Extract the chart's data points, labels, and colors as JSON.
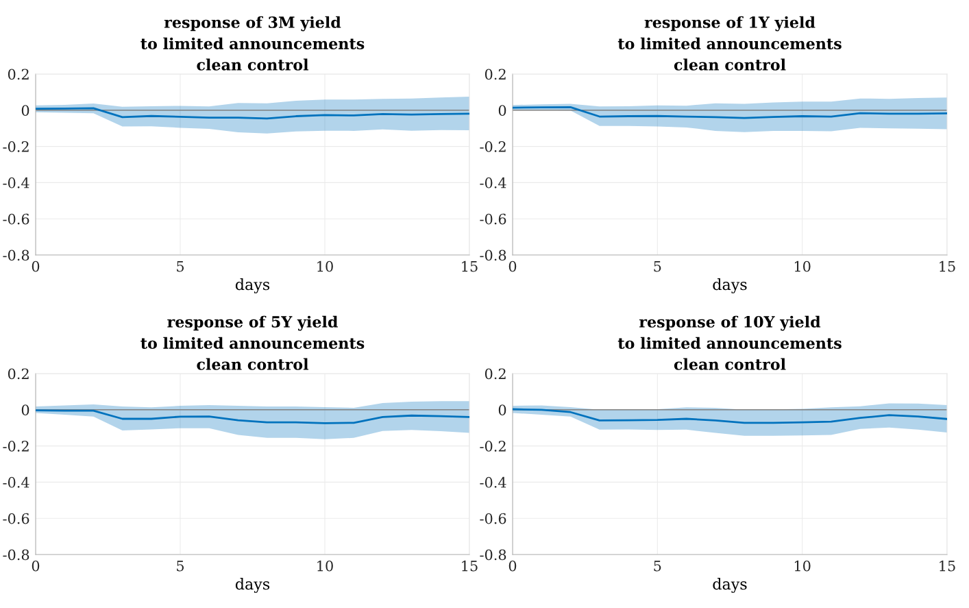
{
  "chart_data": [
    {
      "type": "line",
      "title": "response of 3M yield\nto limited announcements\nclean control",
      "xlabel": "days",
      "x": [
        0,
        1,
        2,
        3,
        4,
        5,
        6,
        7,
        8,
        9,
        10,
        11,
        12,
        13,
        14,
        15
      ],
      "xlim": [
        0,
        15
      ],
      "xticks": [
        0,
        5,
        10,
        15
      ],
      "ylim": [
        -0.8,
        0.2
      ],
      "yticks": [
        -0.8,
        -0.6,
        -0.4,
        -0.2,
        0,
        0.2
      ],
      "grid": true,
      "legend": false,
      "ref_lines": [
        {
          "axis": "y",
          "value": 0,
          "color": "#808080"
        }
      ],
      "series": [
        {
          "color": "#0072bd",
          "values": [
            0.008,
            0.009,
            0.011,
            -0.038,
            -0.032,
            -0.036,
            -0.041,
            -0.041,
            -0.046,
            -0.033,
            -0.027,
            -0.029,
            -0.021,
            -0.024,
            -0.021,
            -0.019
          ],
          "lower": [
            -0.011,
            -0.014,
            -0.017,
            -0.09,
            -0.089,
            -0.097,
            -0.103,
            -0.122,
            -0.129,
            -0.117,
            -0.113,
            -0.114,
            -0.106,
            -0.113,
            -0.11,
            -0.111
          ],
          "upper": [
            0.027,
            0.03,
            0.037,
            0.019,
            0.022,
            0.024,
            0.021,
            0.04,
            0.038,
            0.052,
            0.059,
            0.059,
            0.063,
            0.065,
            0.07,
            0.075
          ]
        }
      ]
    },
    {
      "type": "line",
      "title": "response of 1Y yield\nto limited announcements\nclean control",
      "xlabel": "days",
      "x": [
        0,
        1,
        2,
        3,
        4,
        5,
        6,
        7,
        8,
        9,
        10,
        11,
        12,
        13,
        14,
        15
      ],
      "xlim": [
        0,
        15
      ],
      "xticks": [
        0,
        5,
        10,
        15
      ],
      "ylim": [
        -0.8,
        0.2
      ],
      "yticks": [
        -0.8,
        -0.6,
        -0.4,
        -0.2,
        0,
        0.2
      ],
      "grid": true,
      "legend": false,
      "ref_lines": [
        {
          "axis": "y",
          "value": 0,
          "color": "#808080"
        }
      ],
      "series": [
        {
          "color": "#0072bd",
          "values": [
            0.014,
            0.016,
            0.017,
            -0.035,
            -0.033,
            -0.032,
            -0.035,
            -0.038,
            -0.043,
            -0.037,
            -0.033,
            -0.035,
            -0.016,
            -0.019,
            -0.019,
            -0.017
          ],
          "lower": [
            0.0,
            0.0,
            -0.002,
            -0.087,
            -0.087,
            -0.09,
            -0.095,
            -0.114,
            -0.121,
            -0.114,
            -0.114,
            -0.116,
            -0.097,
            -0.1,
            -0.102,
            -0.105
          ],
          "upper": [
            0.029,
            0.032,
            0.035,
            0.021,
            0.022,
            0.027,
            0.025,
            0.038,
            0.035,
            0.043,
            0.048,
            0.048,
            0.065,
            0.063,
            0.067,
            0.07
          ]
        }
      ]
    },
    {
      "type": "line",
      "title": "response of 5Y yield\nto limited announcements\nclean control",
      "xlabel": "days",
      "x": [
        0,
        1,
        2,
        3,
        4,
        5,
        6,
        7,
        8,
        9,
        10,
        11,
        12,
        13,
        14,
        15
      ],
      "xlim": [
        0,
        15
      ],
      "xticks": [
        0,
        5,
        10,
        15
      ],
      "ylim": [
        -0.8,
        0.2
      ],
      "yticks": [
        -0.8,
        -0.6,
        -0.4,
        -0.2,
        0,
        0.2
      ],
      "grid": true,
      "legend": false,
      "ref_lines": [
        {
          "axis": "y",
          "value": 0,
          "color": "#808080"
        }
      ],
      "series": [
        {
          "color": "#0072bd",
          "values": [
            -0.003,
            -0.005,
            -0.005,
            -0.05,
            -0.05,
            -0.038,
            -0.037,
            -0.058,
            -0.069,
            -0.069,
            -0.074,
            -0.072,
            -0.04,
            -0.032,
            -0.035,
            -0.04
          ],
          "lower": [
            -0.018,
            -0.027,
            -0.038,
            -0.114,
            -0.109,
            -0.102,
            -0.102,
            -0.139,
            -0.155,
            -0.155,
            -0.163,
            -0.155,
            -0.117,
            -0.112,
            -0.118,
            -0.128
          ],
          "upper": [
            0.018,
            0.024,
            0.03,
            0.018,
            0.013,
            0.022,
            0.026,
            0.022,
            0.018,
            0.018,
            0.014,
            0.011,
            0.037,
            0.045,
            0.048,
            0.048
          ]
        }
      ]
    },
    {
      "type": "line",
      "title": "response of 10Y yield\nto limited announcements\nclean control",
      "xlabel": "days",
      "x": [
        0,
        1,
        2,
        3,
        4,
        5,
        6,
        7,
        8,
        9,
        10,
        11,
        12,
        13,
        14,
        15
      ],
      "xlim": [
        0,
        15
      ],
      "xticks": [
        0,
        5,
        10,
        15
      ],
      "ylim": [
        -0.8,
        0.2
      ],
      "yticks": [
        -0.8,
        -0.6,
        -0.4,
        -0.2,
        0,
        0.2
      ],
      "grid": true,
      "legend": false,
      "ref_lines": [
        {
          "axis": "y",
          "value": 0,
          "color": "#808080"
        }
      ],
      "series": [
        {
          "color": "#0072bd",
          "values": [
            0.003,
            0.0,
            -0.013,
            -0.059,
            -0.058,
            -0.056,
            -0.05,
            -0.059,
            -0.072,
            -0.072,
            -0.069,
            -0.066,
            -0.045,
            -0.03,
            -0.037,
            -0.051
          ],
          "lower": [
            -0.018,
            -0.027,
            -0.038,
            -0.11,
            -0.109,
            -0.112,
            -0.11,
            -0.128,
            -0.144,
            -0.144,
            -0.142,
            -0.139,
            -0.106,
            -0.098,
            -0.11,
            -0.126
          ],
          "upper": [
            0.022,
            0.024,
            0.014,
            0.0,
            0.0,
            0.003,
            0.013,
            0.011,
            0.0,
            0.002,
            0.005,
            0.013,
            0.019,
            0.035,
            0.034,
            0.026
          ]
        }
      ]
    }
  ]
}
